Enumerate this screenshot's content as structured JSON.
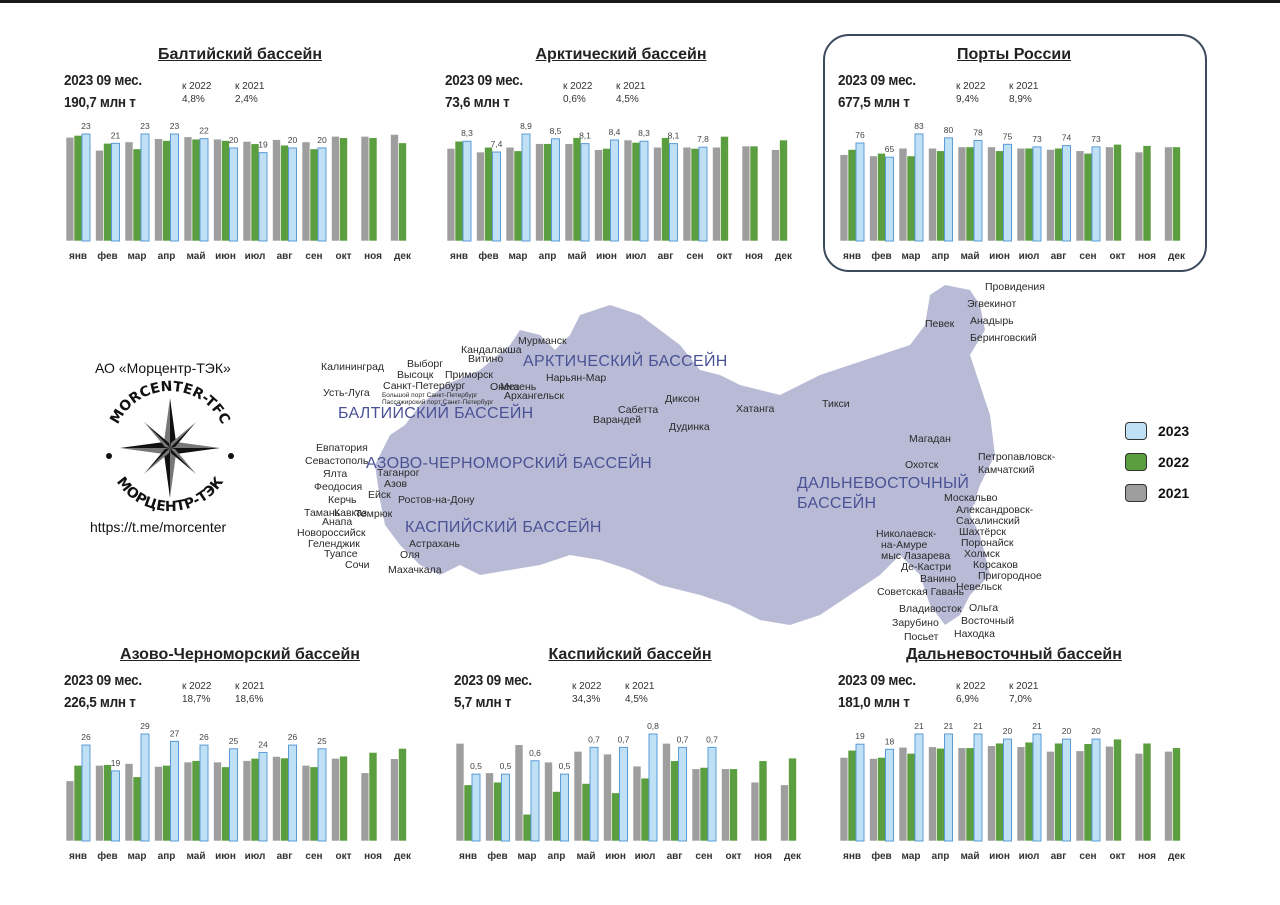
{
  "company": "АО «Морцентр-ТЭК»",
  "link": "https://t.me/morcenter",
  "logo": {
    "word_top": "MORCENTER-TFC",
    "word_bottom": "МОРЦЕНТР-ТЭК"
  },
  "legend": [
    {
      "label": "2023",
      "color": "#bfe0f5"
    },
    {
      "label": "2022",
      "color": "#5a9e3f"
    },
    {
      "label": "2021",
      "color": "#9e9e9e"
    }
  ],
  "colors": {
    "y2023": "#bfe0f5",
    "y2023_stroke": "#5b9bd5",
    "y2022": "#5a9e3f",
    "y2021": "#9e9e9e",
    "map": "#b9bbd6",
    "basin_text": "#4a5296"
  },
  "map": {
    "basins": [
      "АРКТИЧЕСКИЙ БАССЕЙН",
      "БАЛТИЙСКИЙ БАССЕЙН",
      "АЗОВО-ЧЕРНОМОРСКИЙ БАССЕЙН",
      "КАСПИЙСКИЙ БАССЕЙН",
      "ДАЛЬНЕВОСТОЧНЫЙ",
      "БАССЕЙН"
    ],
    "cities": [
      "Провидения",
      "Эгвекинот",
      "Анадырь",
      "Беринговский",
      "Певек",
      "Мурманск",
      "Кандалакша",
      "Витино",
      "Нарьян-Мар",
      "Мезень",
      "Онега",
      "Архангельск",
      "Калининград",
      "Выборг",
      "Высоцк",
      "Приморск",
      "Усть-Луга",
      "Санкт-Петербург",
      "Большой порт Санкт-Петербург",
      "Пассажирский порт Санкт-Петербург",
      "Сабетта",
      "Варандей",
      "Диксон",
      "Дудинка",
      "Хатанга",
      "Тикси",
      "Магадан",
      "Охотск",
      "Петропавловск-",
      "Камчатский",
      "Евпатория",
      "Севастополь",
      "Ялта",
      "Феодосия",
      "Керчь",
      "Кавказ",
      "Тамань",
      "Анапа",
      "Новороссийск",
      "Геленджик",
      "Туапсе",
      "Сочи",
      "Таганрог",
      "Азов",
      "Ейск",
      "Темрюк",
      "Ростов-на-Дону",
      "Астрахань",
      "Оля",
      "Махачкала",
      "Москальво",
      "Александровск-",
      "Сахалинский",
      "Шахтёрск",
      "Поронайск",
      "Холмск",
      "Корсаков",
      "Пригородное",
      "Невельск",
      "Николаевск-",
      "на-Амуре",
      "мыс Лазарева",
      "Де-Кастри",
      "Ванино",
      "Советская Гавань",
      "Владивосток",
      "Ольга",
      "Зарубино",
      "Восточный",
      "Посьет",
      "Находка"
    ]
  },
  "chart_data": [
    {
      "type": "bar",
      "title": "Балтийский бассейн",
      "period": "2023 09 мес.",
      "total": "190,7 млн т",
      "cmp_label_a": "к 2022",
      "cmp_value_a": "4,8%",
      "cmp_label_b": "к 2021",
      "cmp_value_b": "2,4%",
      "categories": [
        "янв",
        "фев",
        "мар",
        "апр",
        "май",
        "июн",
        "июл",
        "авг",
        "сен",
        "окт",
        "ноя",
        "дек"
      ],
      "series": [
        {
          "name": "2021",
          "values": [
            22.3,
            19.5,
            21.3,
            22.0,
            22.4,
            21.9,
            21.4,
            21.8,
            21.3,
            22.5,
            22.5,
            22.9
          ]
        },
        {
          "name": "2022",
          "values": [
            22.7,
            21.0,
            19.8,
            21.6,
            21.9,
            21.6,
            20.9,
            20.6,
            19.8,
            22.2,
            22.2,
            21.1
          ]
        },
        {
          "name": "2023",
          "values": [
            23,
            21,
            23,
            23,
            22,
            20,
            19,
            20,
            20,
            null,
            null,
            null
          ]
        }
      ],
      "data_labels": [
        "23",
        "21",
        "23",
        "23",
        "22",
        "20",
        "19",
        "20",
        "20"
      ]
    },
    {
      "type": "bar",
      "title": "Арктический бассейн",
      "period": "2023 09 мес.",
      "total": "73,6 млн т",
      "cmp_label_a": "к 2022",
      "cmp_value_a": "0,6%",
      "cmp_label_b": "к 2021",
      "cmp_value_b": "4,5%",
      "categories": [
        "янв",
        "фев",
        "мар",
        "апр",
        "май",
        "июн",
        "июл",
        "авг",
        "сен",
        "окт",
        "ноя",
        "дек"
      ],
      "series": [
        {
          "name": "2021",
          "values": [
            7.7,
            7.4,
            7.8,
            8.1,
            8.1,
            7.6,
            8.4,
            7.8,
            7.8,
            7.8,
            7.9,
            7.6
          ]
        },
        {
          "name": "2022",
          "values": [
            8.3,
            7.8,
            7.5,
            8.1,
            8.6,
            7.7,
            8.2,
            8.6,
            7.7,
            8.7,
            7.9,
            8.4
          ]
        },
        {
          "name": "2023",
          "values": [
            8.3,
            7.4,
            8.9,
            8.5,
            8.1,
            8.4,
            8.3,
            8.1,
            7.8,
            null,
            null,
            null
          ]
        }
      ],
      "data_labels": [
        "8,3",
        "7,4",
        "8,9",
        "8,5",
        "8,1",
        "8,4",
        "8,3",
        "8,1",
        "7,8"
      ]
    },
    {
      "type": "bar",
      "title": "Порты России",
      "period": "2023 09 мес.",
      "total": "677,5 млн т",
      "cmp_label_a": "к 2022",
      "cmp_value_a": "9,4%",
      "cmp_label_b": "к 2021",
      "cmp_value_b": "8,9%",
      "categories": [
        "янв",
        "фев",
        "мар",
        "апр",
        "май",
        "июн",
        "июл",
        "авг",
        "сен",
        "окт",
        "ноя",
        "дек"
      ],
      "series": [
        {
          "name": "2021",
          "values": [
            67,
            66,
            72,
            72,
            73,
            73,
            72,
            71,
            70,
            73,
            69,
            73
          ]
        },
        {
          "name": "2022",
          "values": [
            71,
            68,
            66,
            70,
            73,
            70,
            72,
            72,
            68,
            75,
            74,
            73
          ]
        },
        {
          "name": "2023",
          "values": [
            76,
            65,
            83,
            80,
            78,
            75,
            73,
            74,
            73,
            null,
            null,
            null
          ]
        }
      ],
      "data_labels": [
        "76",
        "65",
        "83",
        "80",
        "78",
        "75",
        "73",
        "74",
        "73"
      ]
    },
    {
      "type": "bar",
      "title": "Азово-Черноморский бассейн",
      "period": "2023 09 мес.",
      "total": "226,5 млн т",
      "cmp_label_a": "к 2022",
      "cmp_value_a": "18,7%",
      "cmp_label_b": "к 2021",
      "cmp_value_b": "18,6%",
      "categories": [
        "янв",
        "фев",
        "мар",
        "апр",
        "май",
        "июн",
        "июл",
        "авг",
        "сен",
        "окт",
        "ноя",
        "дек"
      ],
      "series": [
        {
          "name": "2021",
          "values": [
            16.3,
            20.5,
            21.0,
            20.2,
            21.4,
            21.4,
            21.8,
            22.9,
            20.5,
            22.4,
            18.5,
            22.3
          ]
        },
        {
          "name": "2022",
          "values": [
            20.5,
            20.7,
            17.4,
            20.5,
            21.8,
            20.1,
            22.4,
            22.5,
            20.1,
            23.0,
            24.0,
            25.1
          ]
        },
        {
          "name": "2023",
          "values": [
            26,
            19,
            29,
            27,
            26,
            25,
            24,
            26,
            25,
            null,
            null,
            null
          ]
        }
      ],
      "data_labels": [
        "26",
        "19",
        "29",
        "27",
        "26",
        "25",
        "24",
        "26",
        "25"
      ]
    },
    {
      "type": "bar",
      "title": "Каспийский бассейн",
      "period": "2023 09 мес.",
      "total": "5,7 млн т",
      "cmp_label_a": "к 2022",
      "cmp_value_a": "34,3%",
      "cmp_label_b": "к 2021",
      "cmp_value_b": "4,5%",
      "categories": [
        "янв",
        "фев",
        "мар",
        "апр",
        "май",
        "июн",
        "июл",
        "авг",
        "сен",
        "окт",
        "ноя",
        "дек"
      ],
      "series": [
        {
          "name": "2021",
          "values": [
            0.73,
            0.51,
            0.72,
            0.59,
            0.67,
            0.65,
            0.56,
            0.73,
            0.54,
            0.54,
            0.44,
            0.42
          ]
        },
        {
          "name": "2022",
          "values": [
            0.42,
            0.44,
            0.2,
            0.37,
            0.43,
            0.36,
            0.47,
            0.6,
            0.55,
            0.54,
            0.6,
            0.62
          ]
        },
        {
          "name": "2023",
          "values": [
            0.5,
            0.5,
            0.6,
            0.5,
            0.7,
            0.7,
            0.8,
            0.7,
            0.7,
            null,
            null,
            null
          ]
        }
      ],
      "data_labels": [
        "0,5",
        "0,5",
        "0,6",
        "0,5",
        "0,7",
        "0,7",
        "0,8",
        "0,7",
        "0,7"
      ]
    },
    {
      "type": "bar",
      "title": "Дальневосточный бассейн",
      "period": "2023 09 мес.",
      "total": "181,0 млн т",
      "cmp_label_a": "к 2022",
      "cmp_value_a": "6,9%",
      "cmp_label_b": "к 2021",
      "cmp_value_b": "7,0%",
      "categories": [
        "янв",
        "фев",
        "мар",
        "апр",
        "май",
        "июн",
        "июл",
        "авг",
        "сен",
        "окт",
        "ноя",
        "дек"
      ],
      "series": [
        {
          "name": "2021",
          "values": [
            16.4,
            16.2,
            18.4,
            18.5,
            18.3,
            18.7,
            18.5,
            17.6,
            17.7,
            18.6,
            17.2,
            17.6
          ]
        },
        {
          "name": "2022",
          "values": [
            17.8,
            16.4,
            17.2,
            18.2,
            18.3,
            19.2,
            19.4,
            19.2,
            19.1,
            20.0,
            19.2,
            18.3
          ]
        },
        {
          "name": "2023",
          "values": [
            19,
            18,
            21,
            21,
            21,
            20,
            21,
            20,
            20,
            null,
            null,
            null
          ]
        }
      ],
      "data_labels": [
        "19",
        "18",
        "21",
        "21",
        "21",
        "20",
        "21",
        "20",
        "20"
      ]
    }
  ]
}
